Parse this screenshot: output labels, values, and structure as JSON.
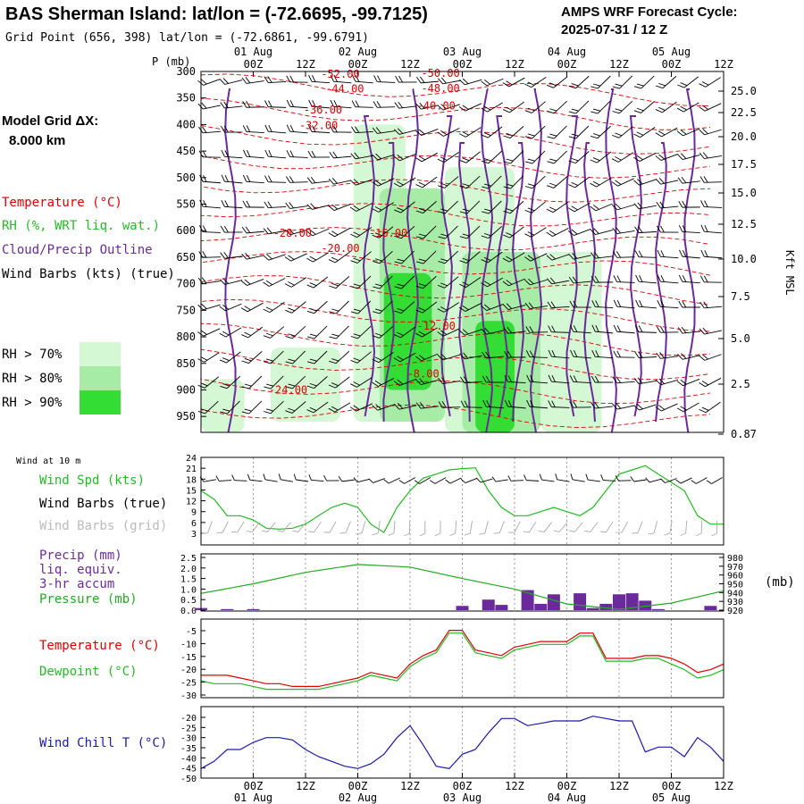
{
  "header": {
    "title": "BAS Sherman Island:  lat/lon = (-72.6695, -99.7125)",
    "subtitle": "Grid Point (656, 398) lat/lon = (-72.6861, -99.6791)",
    "cycle_label": "AMPS WRF Forecast Cycle:",
    "cycle_value": "2025-07-31 / 12  Z"
  },
  "model_grid": {
    "label": "Model Grid ΔX:",
    "value": "8.000 km"
  },
  "colors": {
    "temperature": "#dd0000",
    "rh": "#22bb22",
    "cloud": "#6a2a9a",
    "wind": "#000000",
    "wind_grid": "#aaaaaa",
    "rh70": "#d4f8d4",
    "rh80": "#a6eba6",
    "rh90": "#33dd33",
    "precip_bar": "#6a2a9a",
    "pressure": "#22aa22",
    "dewpoint": "#22bb22",
    "windchill": "#1a1aaa"
  },
  "legend": {
    "temperature": "Temperature (°C)",
    "rh": "RH (%, WRT liq. wat.)",
    "cloud": "Cloud/Precip Outline",
    "wind": "Wind Barbs (kts) (true)",
    "rh70": "RH > 70%",
    "rh80": "RH > 80%",
    "rh90": "RH > 90%"
  },
  "axes": {
    "p_unit": "P (mb)",
    "kft_label": "Kft MSL",
    "mb_label": "(mb)",
    "time_ticks": [
      "00Z",
      "12Z",
      "00Z",
      "12Z",
      "00Z",
      "12Z",
      "00Z",
      "12Z",
      "00Z",
      "12Z"
    ],
    "date_ticks": [
      "01 Aug",
      "02 Aug",
      "03 Aug",
      "04 Aug",
      "05 Aug"
    ],
    "pressure_ticks": [
      "300",
      "350",
      "400",
      "450",
      "500",
      "550",
      "600",
      "650",
      "700",
      "750",
      "800",
      "850",
      "900",
      "950"
    ],
    "kft_ticks": [
      "25.0",
      "22.5",
      "20.0",
      "17.5",
      "15.0",
      "12.5",
      "10.0",
      "7.5",
      "5.0",
      "2.5",
      "0.87"
    ]
  },
  "panels": {
    "wind": {
      "title": "Wind at 10 m",
      "spd_label": "Wind Spd (kts)",
      "barbs_true_label": "Wind Barbs (true)",
      "barbs_grid_label": "Wind Barbs (grid)",
      "yticks": [
        "24",
        "21",
        "18",
        "15",
        "12",
        "9",
        "6",
        "3"
      ]
    },
    "precip": {
      "label1": "Precip (mm)",
      "label2": "liq. equiv.",
      "label3": "3-hr accum",
      "pressure_label": "Pressure (mb)",
      "yticks_left": [
        "2.5",
        "2.0",
        "1.5",
        "1.0",
        "0.5",
        "0.0"
      ],
      "yticks_right": [
        "980",
        "970",
        "960",
        "950",
        "940",
        "930",
        "920"
      ]
    },
    "temp": {
      "temp_label": "Temperature (°C)",
      "dew_label": "Dewpoint (°C)",
      "yticks": [
        "-5",
        "-10",
        "-15",
        "-20",
        "-25",
        "-30"
      ]
    },
    "windchill": {
      "label": "Wind Chill T (°C)",
      "yticks": [
        "-20",
        "-25",
        "-30",
        "-35",
        "-40",
        "-45",
        "-50"
      ]
    }
  },
  "chart_data": [
    {
      "type": "heatmap",
      "title": "Time-height cross section",
      "ylabel": "P (mb)",
      "x_hours": [
        0,
        120
      ],
      "ylim": [
        300,
        980
      ],
      "temperature_contour_labels": [
        {
          "label": "-52.00",
          "hour": 32,
          "p": 305
        },
        {
          "label": "-50.00",
          "hour": 55,
          "p": 303
        },
        {
          "label": "-44.00",
          "hour": 33,
          "p": 333
        },
        {
          "label": "-48.00",
          "hour": 55,
          "p": 332
        },
        {
          "label": "-40.00",
          "hour": 54,
          "p": 365
        },
        {
          "label": "-36.00",
          "hour": 28,
          "p": 372
        },
        {
          "label": "-32.00",
          "hour": 27,
          "p": 402
        },
        {
          "label": "-28.00",
          "hour": 21,
          "p": 605
        },
        {
          "label": "-16.00",
          "hour": 43,
          "p": 605
        },
        {
          "label": "-20.00",
          "hour": 32,
          "p": 633
        },
        {
          "label": "-12.00",
          "hour": 54,
          "p": 780
        },
        {
          "label": "-8.00",
          "hour": 51,
          "p": 870
        },
        {
          "label": "-24.00",
          "hour": 20,
          "p": 900
        }
      ],
      "rh_regions": [
        {
          "level": 70,
          "hour_start": 16,
          "hour_end": 32,
          "p_top": 820,
          "p_bottom": 960
        },
        {
          "level": 70,
          "hour_start": 0,
          "hour_end": 10,
          "p_top": 880,
          "p_bottom": 980
        },
        {
          "level": 70,
          "hour_start": 35,
          "hour_end": 47,
          "p_top": 400,
          "p_bottom": 960
        },
        {
          "level": 80,
          "hour_start": 41,
          "hour_end": 56,
          "p_top": 520,
          "p_bottom": 960
        },
        {
          "level": 90,
          "hour_start": 42,
          "hour_end": 53,
          "p_top": 680,
          "p_bottom": 900
        },
        {
          "level": 70,
          "hour_start": 56,
          "hour_end": 72,
          "p_top": 480,
          "p_bottom": 980
        },
        {
          "level": 80,
          "hour_start": 60,
          "hour_end": 78,
          "p_top": 640,
          "p_bottom": 980
        },
        {
          "level": 90,
          "hour_start": 63,
          "hour_end": 72,
          "p_top": 770,
          "p_bottom": 980
        },
        {
          "level": 70,
          "hour_start": 78,
          "hour_end": 92,
          "p_top": 640,
          "p_bottom": 980
        }
      ]
    },
    {
      "type": "line",
      "title": "Wind at 10 m",
      "x_hours": [
        0,
        3,
        6,
        9,
        12,
        15,
        18,
        21,
        24,
        27,
        30,
        33,
        36,
        39,
        42,
        45,
        48,
        51,
        54,
        57,
        60,
        63,
        66,
        69,
        72,
        75,
        78,
        81,
        84,
        87,
        90,
        93,
        96,
        99,
        102,
        105,
        108,
        111,
        114,
        117,
        120
      ],
      "series": [
        {
          "name": "Wind Spd (kts)",
          "values": [
            16,
            14,
            10,
            10,
            9,
            7,
            6.8,
            7,
            8,
            10,
            12,
            13,
            12,
            8,
            6,
            12,
            16,
            19,
            20,
            21,
            21.3,
            21.5,
            16,
            12,
            10,
            10,
            11,
            12,
            11,
            10,
            12,
            16,
            20,
            21,
            22,
            20,
            18,
            16,
            10,
            8,
            8
          ]
        }
      ],
      "ylim": [
        3,
        24
      ]
    },
    {
      "type": "bar",
      "title": "Precip (mm) liq. equiv. 3-hr accum",
      "x_hours": [
        0,
        3,
        6,
        9,
        12,
        15,
        18,
        21,
        24,
        27,
        30,
        33,
        36,
        39,
        42,
        45,
        48,
        51,
        54,
        57,
        60,
        63,
        66,
        69,
        72,
        75,
        78,
        81,
        84,
        87,
        90,
        93,
        96,
        99,
        102,
        105,
        108,
        111,
        114,
        117,
        120
      ],
      "values": [
        0.1,
        0,
        0.05,
        0,
        0.05,
        0,
        0,
        0,
        0,
        0,
        0,
        0,
        0,
        0,
        0,
        0,
        0,
        0,
        0,
        0,
        0.2,
        0,
        0.5,
        0.25,
        0,
        0.95,
        0.3,
        0.75,
        0,
        0.8,
        0.1,
        0.3,
        0.75,
        0.8,
        0.45,
        0.05,
        0,
        0,
        0,
        0.2,
        0
      ],
      "ylim": [
        0,
        2.5
      ],
      "series": [
        {
          "name": "Pressure (mb)",
          "x_hours": [
            0,
            12,
            24,
            36,
            48,
            60,
            72,
            84,
            96,
            108,
            120
          ],
          "values": [
            939,
            950,
            963,
            972,
            969,
            956,
            944,
            927,
            921,
            928,
            942
          ],
          "ylim": [
            920,
            980
          ]
        }
      ]
    },
    {
      "type": "line",
      "title": "Temperature and Dewpoint",
      "x_hours": [
        0,
        3,
        6,
        9,
        12,
        15,
        18,
        21,
        24,
        27,
        30,
        33,
        36,
        39,
        42,
        45,
        48,
        51,
        54,
        57,
        60,
        63,
        66,
        69,
        72,
        75,
        78,
        81,
        84,
        87,
        90,
        93,
        96,
        99,
        102,
        105,
        108,
        111,
        114,
        117,
        120
      ],
      "series": [
        {
          "name": "Temperature (°C)",
          "values": [
            -22,
            -22,
            -22,
            -23,
            -24,
            -25,
            -25,
            -26,
            -26,
            -26,
            -25,
            -24,
            -23,
            -21,
            -22,
            -23,
            -18,
            -15,
            -13,
            -6,
            -6,
            -13,
            -14,
            -15,
            -12,
            -11,
            -10,
            -10,
            -10,
            -7,
            -7,
            -16,
            -16,
            -16,
            -15,
            -15,
            -16,
            -18,
            -21,
            -20,
            -18
          ],
          "ylim": [
            -30,
            -2
          ]
        },
        {
          "name": "Dewpoint (°C)",
          "values": [
            -24,
            -25,
            -25,
            -25,
            -26,
            -27,
            -27,
            -27,
            -27,
            -27,
            -26,
            -25,
            -24,
            -22,
            -23,
            -24,
            -19,
            -16,
            -14,
            -7,
            -7,
            -14,
            -15,
            -16,
            -13,
            -12,
            -11,
            -11,
            -11,
            -8,
            -8,
            -17,
            -17,
            -17,
            -16,
            -16,
            -18,
            -20,
            -23,
            -22,
            -20
          ],
          "ylim": [
            -30,
            -2
          ]
        }
      ]
    },
    {
      "type": "line",
      "title": "Wind Chill T (°C)",
      "x_hours": [
        0,
        3,
        6,
        9,
        12,
        15,
        18,
        21,
        24,
        27,
        30,
        33,
        36,
        39,
        42,
        45,
        48,
        51,
        54,
        57,
        60,
        63,
        66,
        69,
        72,
        75,
        78,
        81,
        84,
        87,
        90,
        93,
        96,
        99,
        102,
        105,
        108,
        111,
        114,
        117,
        120
      ],
      "series": [
        {
          "name": "Wind Chill T (°C)",
          "values": [
            -46,
            -43,
            -38,
            -38,
            -35,
            -33,
            -33,
            -34,
            -38,
            -41,
            -43,
            -45,
            -46,
            -44,
            -40,
            -33,
            -28,
            -36,
            -45,
            -46,
            -40,
            -38,
            -31,
            -25,
            -25,
            -28,
            -27,
            -26,
            -26,
            -26,
            -24,
            -25,
            -26,
            -26,
            -39,
            -37,
            -37,
            -41,
            -33,
            -37,
            -43
          ]
        }
      ],
      "ylim": [
        -50,
        -20
      ]
    }
  ]
}
